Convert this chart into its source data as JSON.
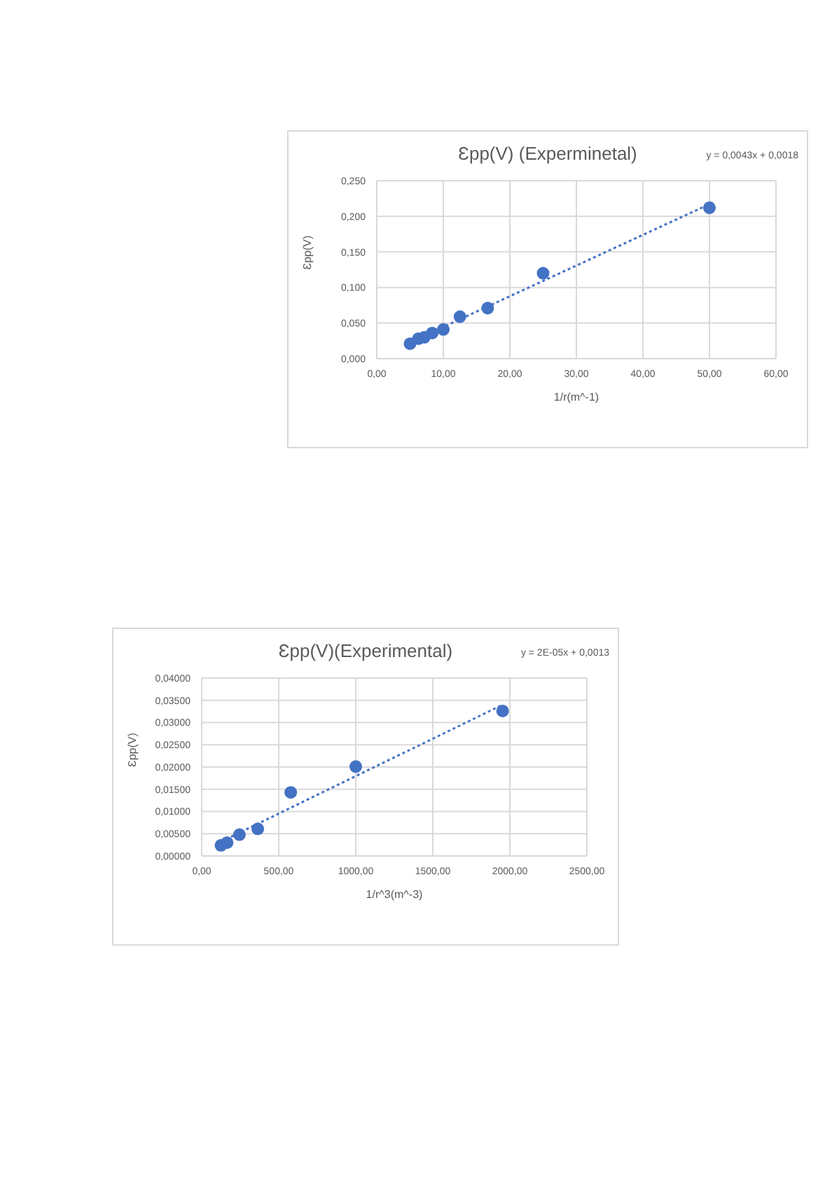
{
  "chart_data": [
    {
      "type": "scatter",
      "title": "Ɛpp(V) (Experminetal)",
      "xlabel": "1/r(m^-1)",
      "ylabel": "Ɛpp(V)",
      "annotations": [
        "y = 0,0043x + 0,0018"
      ],
      "grid": true,
      "marker": "circle",
      "xlim": [
        0,
        60
      ],
      "xticks": [
        {
          "value": 0,
          "label": "0,00"
        },
        {
          "value": 10,
          "label": "10,00"
        },
        {
          "value": 20,
          "label": "20,00"
        },
        {
          "value": 30,
          "label": "30,00"
        },
        {
          "value": 40,
          "label": "40,00"
        },
        {
          "value": 50,
          "label": "50,00"
        },
        {
          "value": 60,
          "label": "60,00"
        }
      ],
      "ylim": [
        0,
        0.25
      ],
      "yticks": [
        {
          "value": 0,
          "label": "0,000"
        },
        {
          "value": 0.05,
          "label": "0,050"
        },
        {
          "value": 0.1,
          "label": "0,100"
        },
        {
          "value": 0.15,
          "label": "0,150"
        },
        {
          "value": 0.2,
          "label": "0,200"
        },
        {
          "value": 0.25,
          "label": "0,250"
        }
      ],
      "series": [
        {
          "color": "#4472c4",
          "x": [
            5,
            6.25,
            7.14,
            8.33,
            10,
            12.5,
            16.67,
            25,
            50
          ],
          "values": [
            0.021,
            0.028,
            0.03,
            0.036,
            0.041,
            0.059,
            0.071,
            0.12,
            0.212
          ]
        },
        {
          "type": "line",
          "color": "#4472c4",
          "line_style": "dotted",
          "marker": "none",
          "x": [
            5,
            50
          ],
          "values": [
            0.023,
            0.217
          ]
        }
      ]
    },
    {
      "type": "scatter",
      "title": "Ɛpp(V)(Experimental)",
      "xlabel": "1/r^3(m^-3)",
      "ylabel": "Ɛpp(V)",
      "annotations": [
        "y = 2E-05x + 0,0013"
      ],
      "grid": true,
      "marker": "circle",
      "xlim": [
        0,
        2500
      ],
      "xticks": [
        {
          "value": 0,
          "label": "0,00"
        },
        {
          "value": 500,
          "label": "500,00"
        },
        {
          "value": 1000,
          "label": "1000,00"
        },
        {
          "value": 1500,
          "label": "1500,00"
        },
        {
          "value": 2000,
          "label": "2000,00"
        },
        {
          "value": 2500,
          "label": "2500,00"
        }
      ],
      "ylim": [
        0,
        0.04
      ],
      "yticks": [
        {
          "value": 0,
          "label": "0,00000"
        },
        {
          "value": 0.005,
          "label": "0,00500"
        },
        {
          "value": 0.01,
          "label": "0,01000"
        },
        {
          "value": 0.015,
          "label": "0,01500"
        },
        {
          "value": 0.02,
          "label": "0,02000"
        },
        {
          "value": 0.025,
          "label": "0,02500"
        },
        {
          "value": 0.03,
          "label": "0,03000"
        },
        {
          "value": 0.035,
          "label": "0,03500"
        },
        {
          "value": 0.04,
          "label": "0,04000"
        }
      ],
      "series": [
        {
          "color": "#4472c4",
          "x": [
            125,
            165,
            245,
            364,
            578,
            1000,
            1953
          ],
          "values": [
            0.0024,
            0.003,
            0.0048,
            0.0061,
            0.0143,
            0.0201,
            0.0326
          ]
        },
        {
          "type": "line",
          "color": "#4472c4",
          "line_style": "dotted",
          "marker": "none",
          "x": [
            125,
            1953
          ],
          "values": [
            0.0032,
            0.034
          ]
        }
      ]
    }
  ]
}
